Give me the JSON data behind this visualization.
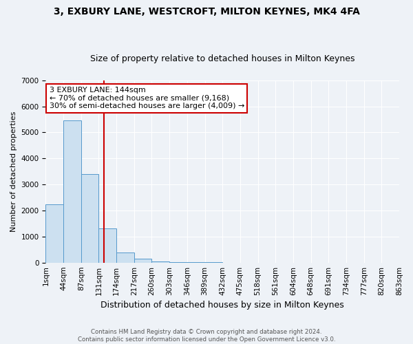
{
  "title": "3, EXBURY LANE, WESTCROFT, MILTON KEYNES, MK4 4FA",
  "subtitle": "Size of property relative to detached houses in Milton Keynes",
  "xlabel": "Distribution of detached houses by size in Milton Keynes",
  "ylabel": "Number of detached properties",
  "bin_labels": [
    "1sqm",
    "44sqm",
    "87sqm",
    "131sqm",
    "174sqm",
    "217sqm",
    "260sqm",
    "303sqm",
    "346sqm",
    "389sqm",
    "432sqm",
    "475sqm",
    "518sqm",
    "561sqm",
    "604sqm",
    "648sqm",
    "691sqm",
    "734sqm",
    "777sqm",
    "820sqm",
    "863sqm"
  ],
  "bar_heights": [
    2250,
    5450,
    3400,
    1300,
    380,
    150,
    50,
    30,
    10,
    5,
    2,
    0,
    0,
    0,
    0,
    0,
    0,
    0,
    0,
    0
  ],
  "bar_color": "#cce0f0",
  "bar_edgecolor": "#5599cc",
  "vline_x": 3.3,
  "vline_color": "#cc0000",
  "annotation_text": "3 EXBURY LANE: 144sqm\n← 70% of detached houses are smaller (9,168)\n30% of semi-detached houses are larger (4,009) →",
  "annotation_box_color": "#ffffff",
  "annotation_box_edgecolor": "#cc0000",
  "ylim": [
    0,
    7000
  ],
  "yticks": [
    0,
    1000,
    2000,
    3000,
    4000,
    5000,
    6000,
    7000
  ],
  "footer1": "Contains HM Land Registry data © Crown copyright and database right 2024.",
  "footer2": "Contains public sector information licensed under the Open Government Licence v3.0.",
  "background_color": "#eef2f7",
  "title_fontsize": 10,
  "subtitle_fontsize": 9,
  "tick_fontsize": 7.5,
  "ylabel_fontsize": 8,
  "xlabel_fontsize": 9
}
